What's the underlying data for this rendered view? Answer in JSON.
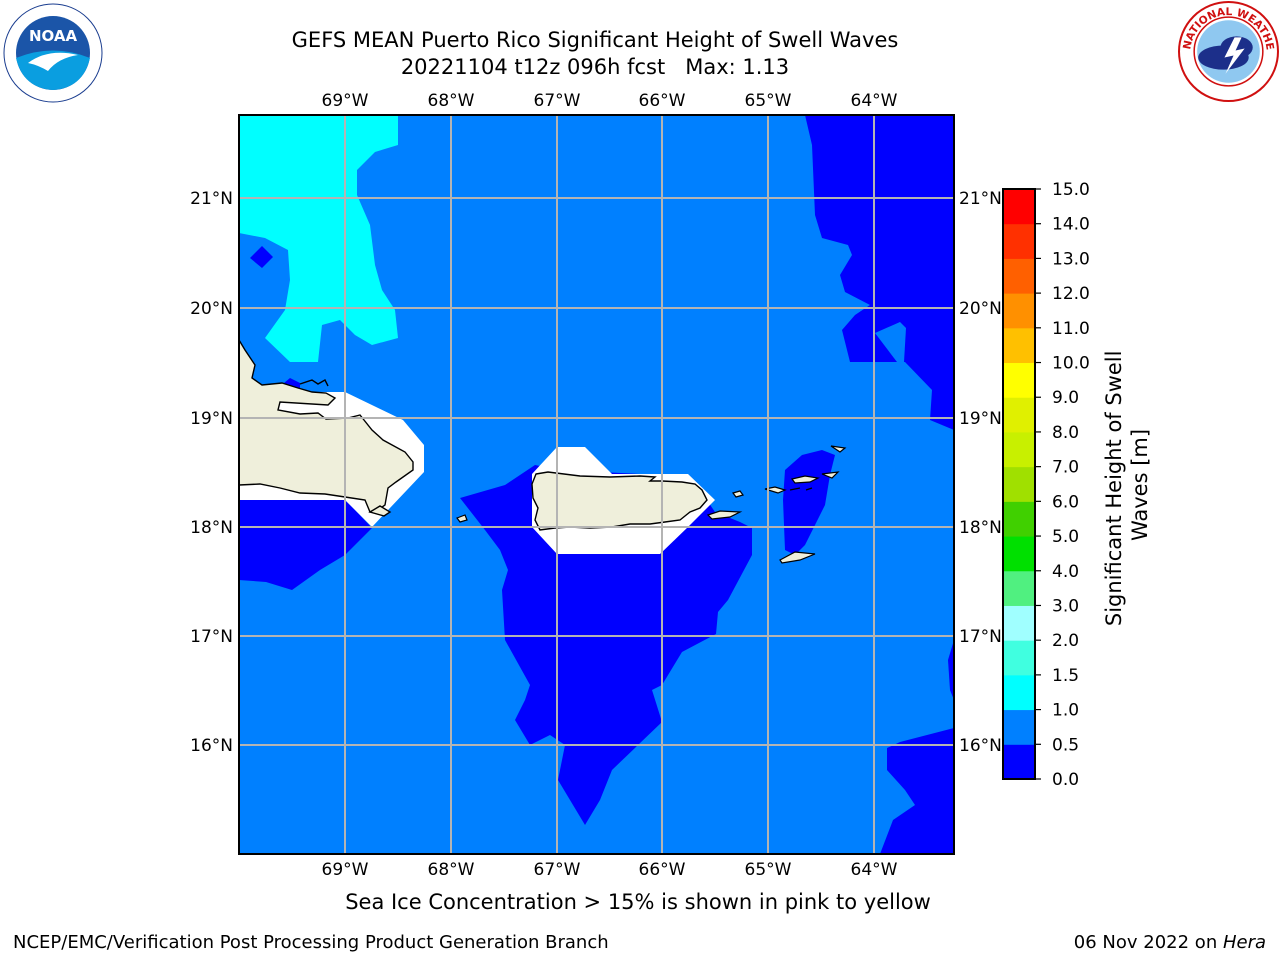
{
  "header": {
    "title_line1": "GEFS MEAN Puerto Rico Significant Height of Swell Waves",
    "title_line2": "20221104 t12z 096h fcst   Max: 1.13"
  },
  "map": {
    "lon_labels": [
      "69°W",
      "68°W",
      "67°W",
      "66°W",
      "65°W",
      "64°W"
    ],
    "lat_labels": [
      "21°N",
      "20°N",
      "19°N",
      "18°N",
      "17°N",
      "16°N"
    ],
    "land_color": "#efefdb",
    "mask_color": "#ffffff"
  },
  "colorbar": {
    "label_line1": "Significant Height of Swell",
    "label_line2": "Waves [m]",
    "ticks": [
      "0.0",
      "0.5",
      "1.0",
      "1.5",
      "2.0",
      "3.0",
      "4.0",
      "5.0",
      "6.0",
      "7.0",
      "8.0",
      "9.0",
      "10.0",
      "11.0",
      "12.0",
      "13.0",
      "14.0",
      "15.0"
    ],
    "colors": [
      "#0000ff",
      "#0080ff",
      "#00ffff",
      "#40ffe0",
      "#a0ffff",
      "#50f080",
      "#00e000",
      "#40d000",
      "#a0e000",
      "#c8f000",
      "#e0f000",
      "#ffff00",
      "#ffc000",
      "#ff9000",
      "#ff6000",
      "#ff3000",
      "#ff0000"
    ]
  },
  "legend_values": {
    "class_0": "0.0–0.5",
    "class_1": "0.5–1.0",
    "class_2": "1.0–1.5"
  },
  "note": "Sea Ice Concentration > 15% is shown in pink to yellow",
  "footer": {
    "left": "NCEP/EMC/Verification Post Processing Product Generation Branch",
    "right_date": "06 Nov 2022 on ",
    "right_host": "Hera"
  },
  "logos": {
    "noaa_text": "NOAA",
    "nws_ring": "NATIONAL WEATHER SERVICE"
  }
}
